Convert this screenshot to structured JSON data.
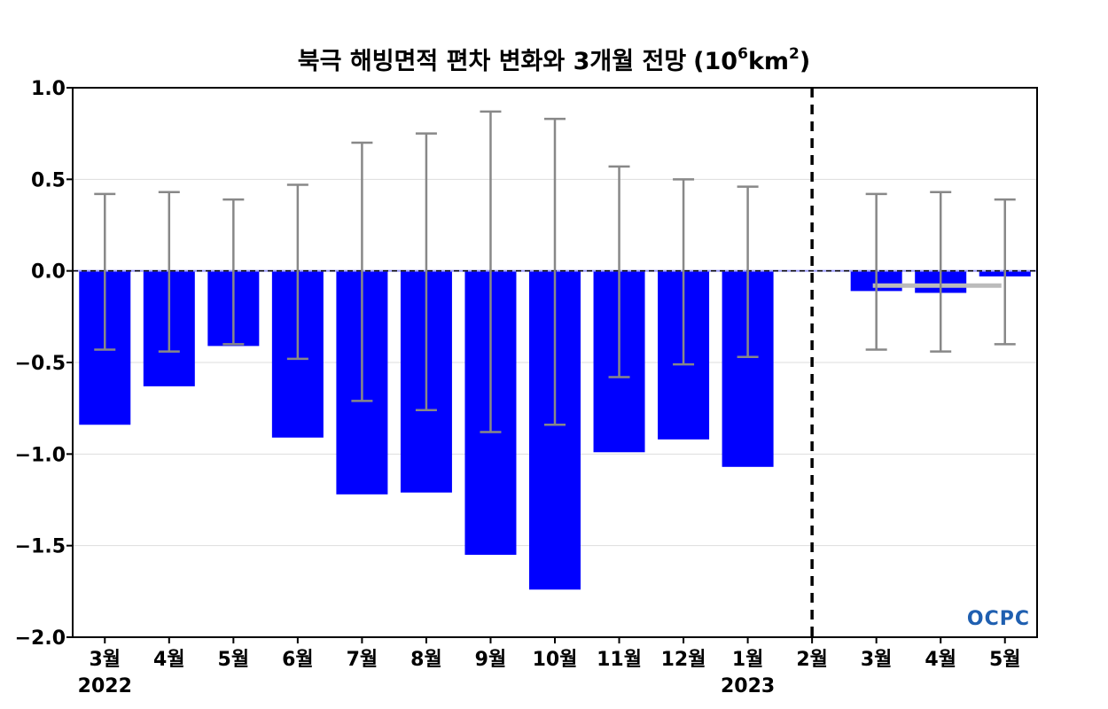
{
  "chart_data": {
    "type": "bar",
    "title": "북극 해빙면적 편차 변화와 3개월 전망",
    "title_unit": {
      "open": "(10",
      "sup1": "6",
      "mid": "km",
      "sup2": "2",
      "close": ")"
    },
    "categories": [
      "3월",
      "4월",
      "5월",
      "6월",
      "7월",
      "8월",
      "9월",
      "10월",
      "11월",
      "12월",
      "1월",
      "2월",
      "3월",
      "4월",
      "5월"
    ],
    "year_labels": [
      {
        "category_index": 0,
        "text": "2022"
      },
      {
        "category_index": 10,
        "text": "2023"
      }
    ],
    "values": [
      -0.84,
      -0.63,
      -0.41,
      -0.91,
      -1.22,
      -1.21,
      -1.55,
      -1.74,
      -0.99,
      -0.92,
      -1.07,
      0.0,
      -0.11,
      -0.12,
      -0.03
    ],
    "error_ranges": [
      [
        -0.43,
        0.42
      ],
      [
        -0.44,
        0.43
      ],
      [
        -0.4,
        0.39
      ],
      [
        -0.48,
        0.47
      ],
      [
        -0.71,
        0.7
      ],
      [
        -0.76,
        0.75
      ],
      [
        -0.88,
        0.87
      ],
      [
        -0.84,
        0.83
      ],
      [
        -0.58,
        0.57
      ],
      [
        -0.51,
        0.5
      ],
      [
        -0.47,
        0.46
      ],
      null,
      [
        -0.43,
        0.42
      ],
      [
        -0.44,
        0.43
      ],
      [
        -0.4,
        0.39
      ]
    ],
    "forecast_reference_line": {
      "from_index": 12,
      "to_index": 14,
      "value": -0.08
    },
    "forecast_divider_index": 11,
    "yticks": [
      1.0,
      0.5,
      0.0,
      -0.5,
      -1.0,
      -1.5,
      -2.0
    ],
    "ytick_labels": [
      "1.0",
      "0.5",
      "0.0",
      "−0.5",
      "−1.0",
      "−1.5",
      "−2.0"
    ],
    "ylim": [
      -2.0,
      1.0
    ],
    "grid": true,
    "colors": {
      "bar": "#0000ff",
      "error_bar": "#888888",
      "reference_line": "#bbbbbb",
      "grid": "#dddddd",
      "zero_line": "#000000",
      "divider": "#000000"
    }
  },
  "watermark": {
    "text": "OCPC"
  }
}
